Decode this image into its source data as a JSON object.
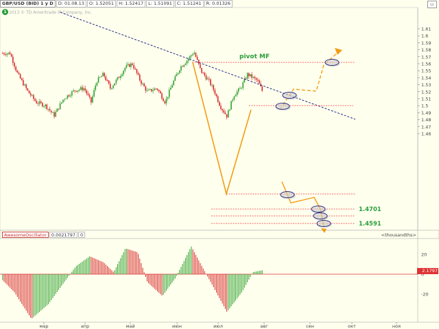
{
  "header": {
    "title": "GBP/USD (BID) 1 y D",
    "date": "D: 01.08.13",
    "open": "O: 1.52051",
    "high": "H: 1.52417",
    "low": "L: 1.51091",
    "close": "C: 1.51241",
    "range": "R: 0.01326"
  },
  "copyright": "2013 © TD Ameritrade IP Company, Inc.",
  "badge": "1",
  "price_axis": [
    "1.61",
    "1.6",
    "1.59",
    "1.58",
    "1.57",
    "1.56",
    "1.55",
    "1.54",
    "1.53",
    "1.52",
    "1.51",
    "1.5",
    "1.49",
    "1.48",
    "1.47",
    "1.46"
  ],
  "osc_axis": [
    "20",
    "0",
    "-20"
  ],
  "time_axis": [
    "мар",
    "апр",
    "май",
    "июн",
    "июл",
    "авг",
    "сен",
    "окт",
    "ноя"
  ],
  "annotations": {
    "pivot": "pivot MF",
    "level1": "1.4701",
    "level2": "1.4591"
  },
  "oscillator": {
    "name": "AwesomeOscillator",
    "value": "0.0021797",
    "zero": "0",
    "units": "<thousandths>",
    "tag": "2.1797"
  },
  "colors": {
    "bull": "#2ca02c",
    "bear": "#d62728",
    "trend": "#1f2a80",
    "pivot": "#e33",
    "projection": "#f39c12",
    "circle": "#2a2a80"
  }
}
